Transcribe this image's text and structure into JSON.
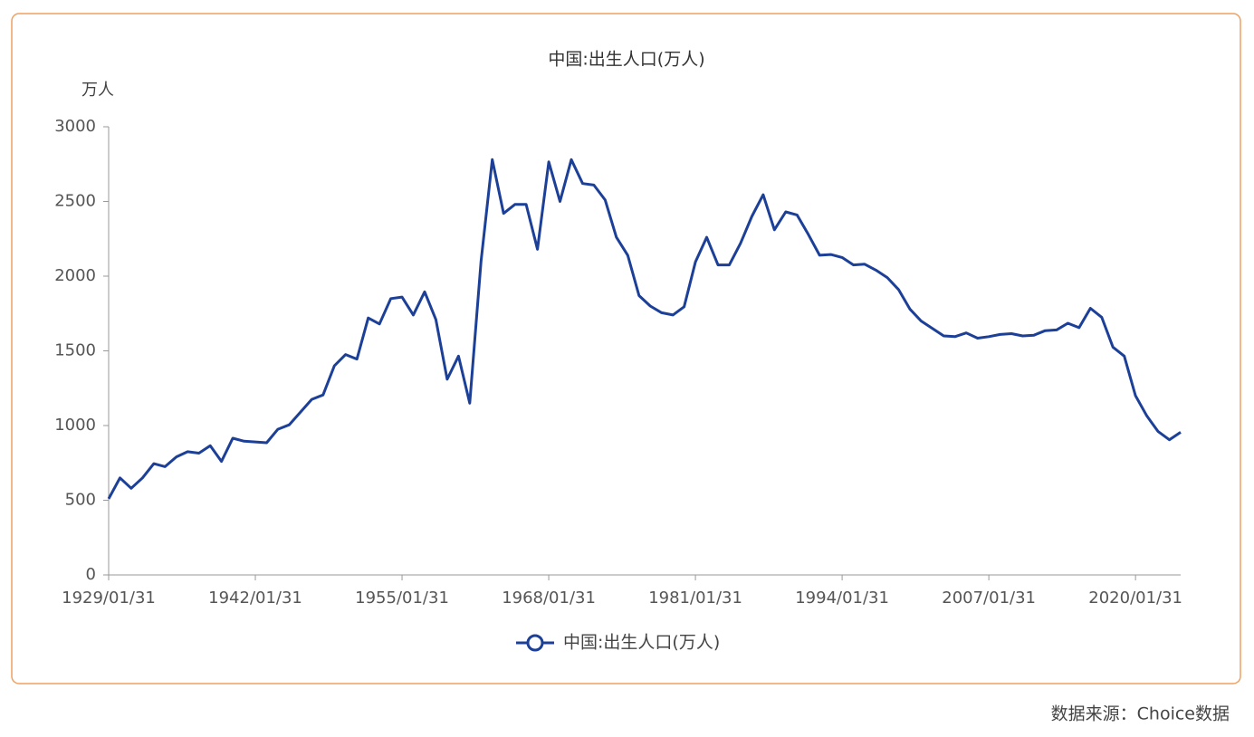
{
  "chart_data": {
    "type": "line",
    "title": "中国:出生人口(万人)",
    "y_label": "万人",
    "source": "数据来源：Choice数据",
    "categories": [
      "1929/01/31",
      "1930/01/31",
      "1931/01/31",
      "1932/01/31",
      "1933/01/31",
      "1934/01/31",
      "1935/01/31",
      "1936/01/31",
      "1937/01/31",
      "1938/01/31",
      "1939/01/31",
      "1940/01/31",
      "1941/01/31",
      "1942/01/31",
      "1943/01/31",
      "1944/01/31",
      "1945/01/31",
      "1946/01/31",
      "1947/01/31",
      "1948/01/31",
      "1949/01/31",
      "1950/01/31",
      "1951/01/31",
      "1952/01/31",
      "1953/01/31",
      "1954/01/31",
      "1955/01/31",
      "1956/01/31",
      "1957/01/31",
      "1958/01/31",
      "1959/01/31",
      "1960/01/31",
      "1961/01/31",
      "1962/01/31",
      "1963/01/31",
      "1964/01/31",
      "1965/01/31",
      "1966/01/31",
      "1967/01/31",
      "1968/01/31",
      "1969/01/31",
      "1970/01/31",
      "1971/01/31",
      "1972/01/31",
      "1973/01/31",
      "1974/01/31",
      "1975/01/31",
      "1976/01/31",
      "1977/01/31",
      "1978/01/31",
      "1979/01/31",
      "1980/01/31",
      "1981/01/31",
      "1982/01/31",
      "1983/01/31",
      "1984/01/31",
      "1985/01/31",
      "1986/01/31",
      "1987/01/31",
      "1988/01/31",
      "1989/01/31",
      "1990/01/31",
      "1991/01/31",
      "1992/01/31",
      "1993/01/31",
      "1994/01/31",
      "1995/01/31",
      "1996/01/31",
      "1997/01/31",
      "1998/01/31",
      "1999/01/31",
      "2000/01/31",
      "2001/01/31",
      "2002/01/31",
      "2003/01/31",
      "2004/01/31",
      "2005/01/31",
      "2006/01/31",
      "2007/01/31",
      "2008/01/31",
      "2009/01/31",
      "2010/01/31",
      "2011/01/31",
      "2012/01/31",
      "2013/01/31",
      "2014/01/31",
      "2015/01/31",
      "2016/01/31",
      "2017/01/31",
      "2018/01/31",
      "2019/01/31",
      "2020/01/31",
      "2021/01/31",
      "2022/01/31",
      "2023/01/31",
      "2024/01/31"
    ],
    "series": [
      {
        "name": "中国:出生人口(万人)",
        "color": "#1c3f98",
        "values": [
          510,
          650,
          580,
          650,
          745,
          725,
          790,
          825,
          815,
          865,
          760,
          915,
          895,
          890,
          885,
          975,
          1005,
          1090,
          1175,
          1205,
          1400,
          1475,
          1445,
          1720,
          1680,
          1850,
          1860,
          1740,
          1895,
          1710,
          1310,
          1465,
          1150,
          2100,
          2780,
          2420,
          2480,
          2480,
          2180,
          2765,
          2500,
          2780,
          2620,
          2610,
          2510,
          2260,
          2140,
          1870,
          1800,
          1755,
          1740,
          1795,
          2095,
          2260,
          2075,
          2075,
          2220,
          2400,
          2545,
          2310,
          2430,
          2410,
          2280,
          2140,
          2145,
          2125,
          2075,
          2080,
          2040,
          1990,
          1910,
          1780,
          1700,
          1650,
          1600,
          1595,
          1620,
          1585,
          1595,
          1610,
          1615,
          1600,
          1605,
          1635,
          1640,
          1685,
          1655,
          1785,
          1725,
          1525,
          1465,
          1200,
          1065,
          960,
          905,
          955
        ]
      }
    ],
    "ylim": [
      0,
      3000
    ],
    "yticks": [
      0,
      500,
      1000,
      1500,
      2000,
      2500,
      3000
    ]
  }
}
